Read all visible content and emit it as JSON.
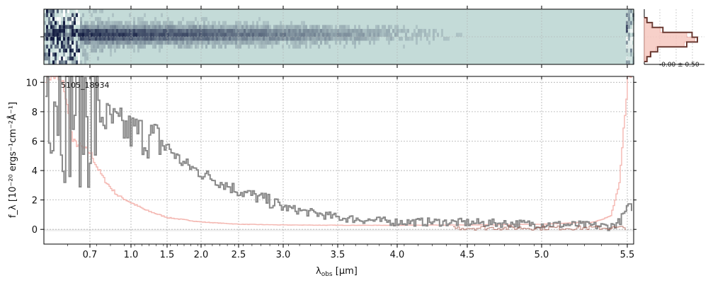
{
  "spectrum_panel": {
    "object_id": "5105_18934",
    "xlabel_main": "λ",
    "xlabel_sub": "obs",
    "xlabel_unit": " [μm]",
    "ylabel": "f_λ [10⁻²⁰ ergs⁻¹cm⁻²Å⁻¹]"
  },
  "profile_panel": {
    "annotation": "-0.00 ± 0.50"
  },
  "colors": {
    "spectrum": "#8a8a8a",
    "error": "#f4b6b0",
    "model": "#a04a3c",
    "profile": "#6b3a32",
    "profile_fill": "#f6c8c0",
    "image_bg": "#c4dbd8",
    "grid": "#b0b0b0"
  },
  "chart_data": [
    {
      "type": "line",
      "title": "",
      "x_ticks": [
        "0.7",
        "1.0",
        "1.5",
        "2.0",
        "2.5",
        "3.0",
        "3.5",
        "4.0",
        "4.5",
        "5.0",
        "5.5"
      ],
      "y_ticks": [
        "0",
        "2",
        "4",
        "6",
        "8",
        "10"
      ],
      "ylim": [
        -1,
        10.4
      ],
      "xscale": "nonlinear (spectral-resolution spaced)",
      "grid": true,
      "series": [
        {
          "role": "flux",
          "x": [
            0.62,
            0.64,
            0.66,
            0.68,
            0.7,
            0.73,
            0.76,
            0.8,
            0.85,
            0.9,
            0.95,
            1.0,
            1.1,
            1.2,
            1.3,
            1.5,
            1.7,
            2.0,
            2.3,
            2.5,
            2.8,
            3.0,
            3.2,
            3.5,
            3.8,
            4.0,
            4.3,
            4.5,
            4.8,
            5.0,
            5.2,
            5.3,
            5.4,
            5.45,
            5.5
          ],
          "y": [
            10.4,
            9.2,
            9.0,
            8.7,
            8.4,
            8.1,
            7.9,
            7.6,
            7.3,
            7.0,
            6.8,
            6.6,
            6.6,
            6.2,
            6.2,
            5.6,
            4.6,
            3.8,
            3.1,
            2.6,
            2.0,
            1.5,
            1.2,
            0.8,
            0.6,
            0.5,
            0.5,
            0.45,
            0.4,
            0.35,
            0.3,
            0.25,
            0.2,
            0.5,
            1.5
          ]
        },
        {
          "role": "uncertainty",
          "x": [
            0.62,
            0.64,
            0.66,
            0.7,
            0.75,
            0.8,
            0.85,
            0.9,
            1.0,
            1.2,
            1.5,
            2.0,
            2.5,
            3.0,
            3.5,
            4.0,
            4.5,
            5.0,
            5.3,
            5.4,
            5.45,
            5.5
          ],
          "y": [
            10.4,
            9.8,
            6.0,
            5.2,
            4.2,
            3.4,
            2.8,
            2.3,
            1.8,
            1.3,
            0.8,
            0.5,
            0.35,
            0.3,
            0.28,
            0.28,
            0.3,
            0.35,
            0.5,
            0.9,
            3.0,
            10.4
          ]
        }
      ]
    },
    {
      "type": "heatmap",
      "title": "",
      "description": "2D spectrum, bright trace along center, noisy at blue end"
    },
    {
      "type": "line",
      "title": "",
      "annotation": "-0.00 ± 0.50",
      "profile_levels": [
        0.05,
        0.15,
        0.35,
        0.9,
        1.0,
        0.8,
        0.25,
        0.12,
        0.05
      ],
      "fit_levels": [
        0.04,
        0.12,
        0.3,
        0.8,
        0.95,
        0.75,
        0.22,
        0.1,
        0.04
      ]
    }
  ]
}
